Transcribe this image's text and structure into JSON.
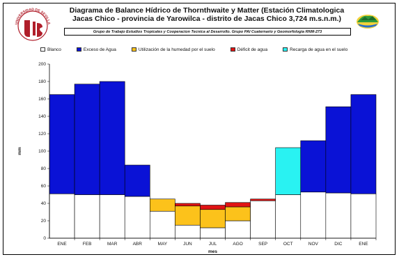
{
  "header": {
    "title": "Diagrama de Balance Hídrico de Thornthwaite y Matter (Estación Climatologica  Jacas Chico - provincia de Yarowilca - distrito de Jacas Chico 3,724  m.s.n.m.)",
    "subtitle": "Grupo de Trabajo Estudios Tropicales y Cooperacion Tecnica al Desarrollo. Grupo PAI Cuaternario y Geomorfologia RNM-273",
    "logo_left_text": "UNIVERSIDAD DE SEVILLA"
  },
  "chart_data": {
    "type": "bar",
    "stacked": true,
    "categories": [
      "ENE",
      "FEB",
      "MAR",
      "ABR",
      "MAY",
      "JUN",
      "JUL",
      "AGO",
      "SEP",
      "OCT",
      "NOV",
      "DIC",
      "ENE"
    ],
    "series": [
      {
        "name": "Blanco",
        "color": "#ffffff",
        "values": [
          51,
          50,
          50,
          48,
          31,
          15,
          12,
          20,
          43,
          50,
          53,
          52,
          51
        ]
      },
      {
        "name": "Exceso de Agua",
        "color": "#0a12d6",
        "values": [
          114,
          127,
          130,
          36,
          0,
          0,
          0,
          0,
          0,
          0,
          59,
          99,
          114
        ]
      },
      {
        "name": "Utilización de la humedad por el suelo",
        "color": "#fcc21b",
        "values": [
          0,
          0,
          0,
          0,
          14,
          22,
          21,
          16,
          0,
          0,
          0,
          0,
          0
        ]
      },
      {
        "name": "Déficit de agua",
        "color": "#e01414",
        "values": [
          0,
          0,
          0,
          0,
          0,
          3,
          5,
          5,
          2,
          0,
          0,
          0,
          0
        ]
      },
      {
        "name": "Recarga de agua en el suelo",
        "color": "#29f2f2",
        "values": [
          0,
          0,
          0,
          0,
          0,
          0,
          0,
          0,
          0,
          54,
          0,
          0,
          0
        ]
      }
    ],
    "xlabel": "mes",
    "ylabel": "mm",
    "ylim": [
      0,
      200
    ],
    "yticks": [
      0,
      20,
      40,
      60,
      80,
      100,
      120,
      140,
      160,
      180,
      200
    ],
    "grid": false,
    "legend": "top"
  }
}
